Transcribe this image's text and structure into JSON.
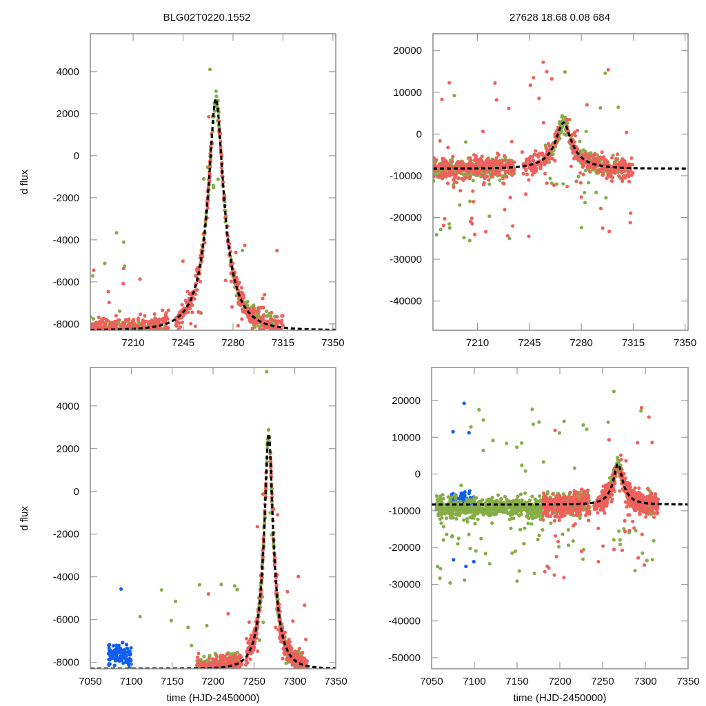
{
  "titles": {
    "left": "BLG02T0220.1552",
    "right": "27628  18.68  0.08  684"
  },
  "labels": {
    "ylabel": "d flux",
    "xlabel": "time (HJD-2450000)"
  },
  "colors": {
    "green": "#86ad47",
    "red": "#ef605c",
    "blue": "#0f5ef0",
    "model": "#000000",
    "frame": "#8a8a8a"
  },
  "chart_data": [
    {
      "id": "top-left",
      "type": "scatter",
      "title": "BLG02T0220.1552",
      "xlabel": "",
      "ylabel": "d flux",
      "xlim": [
        7180,
        7352
      ],
      "ylim": [
        -8300,
        5800
      ],
      "xticks": [
        7210,
        7245,
        7280,
        7315,
        7350
      ],
      "yticks": [
        -8000,
        -6000,
        -4000,
        -2000,
        0,
        2000,
        4000
      ],
      "model": {
        "t0": 7268,
        "peak": 2700,
        "baseline": -8300,
        "tE": 20,
        "style": "dashed"
      },
      "series": [
        {
          "name": "green",
          "color": "green",
          "segments": [
            [
              7180,
              7230
            ],
            [
              7255,
              7275
            ],
            [
              7278,
              7310
            ]
          ]
        },
        {
          "name": "red",
          "color": "red",
          "segments": [
            [
              7180,
              7235
            ],
            [
              7240,
              7265
            ],
            [
              7270,
              7315
            ]
          ]
        }
      ]
    },
    {
      "id": "top-right",
      "type": "scatter",
      "title": "27628  18.68  0.08  684",
      "xlabel": "",
      "ylabel": "",
      "xlim": [
        7180,
        7352
      ],
      "ylim": [
        -47000,
        24000
      ],
      "xticks": [
        7210,
        7245,
        7280,
        7315,
        7350
      ],
      "yticks": [
        -40000,
        -30000,
        -20000,
        -10000,
        0,
        10000,
        20000
      ],
      "model": {
        "t0": 7268,
        "peak": 2700,
        "baseline": -8300,
        "tE": 20,
        "style": "dashed"
      },
      "series": [
        {
          "name": "green",
          "color": "green",
          "segments": [
            [
              7180,
              7235
            ],
            [
              7255,
              7275
            ],
            [
              7278,
              7310
            ]
          ]
        },
        {
          "name": "red",
          "color": "red",
          "segments": [
            [
              7180,
              7235
            ],
            [
              7240,
              7265
            ],
            [
              7270,
              7315
            ]
          ]
        }
      ]
    },
    {
      "id": "bottom-left",
      "type": "scatter",
      "title": "",
      "xlabel": "time (HJD-2450000)",
      "ylabel": "d flux",
      "xlim": [
        7050,
        7350
      ],
      "ylim": [
        -8300,
        5800
      ],
      "xticks": [
        7050,
        7100,
        7150,
        7200,
        7250,
        7300,
        7350
      ],
      "yticks": [
        -8000,
        -6000,
        -4000,
        -2000,
        0,
        2000,
        4000
      ],
      "model": {
        "t0": 7268,
        "peak": 2700,
        "baseline": -8300,
        "tE": 20,
        "style": "dashed"
      },
      "series": [
        {
          "name": "blue",
          "color": "blue",
          "segments": [
            [
              7072,
              7100
            ]
          ]
        },
        {
          "name": "green",
          "color": "green",
          "segments": [
            [
              7100,
              7232
            ],
            [
              7255,
              7275
            ],
            [
              7278,
              7310
            ]
          ]
        },
        {
          "name": "red",
          "color": "red",
          "segments": [
            [
              7180,
              7235
            ],
            [
              7240,
              7265
            ],
            [
              7270,
              7315
            ]
          ]
        }
      ]
    },
    {
      "id": "bottom-right",
      "type": "scatter",
      "title": "",
      "xlabel": "time (HJD-2450000)",
      "ylabel": "",
      "xlim": [
        7050,
        7350
      ],
      "ylim": [
        -53000,
        29000
      ],
      "xticks": [
        7050,
        7100,
        7150,
        7200,
        7250,
        7300,
        7350
      ],
      "yticks": [
        -50000,
        -40000,
        -30000,
        -20000,
        -10000,
        0,
        10000,
        20000
      ],
      "model": {
        "t0": 7268,
        "peak": 2700,
        "baseline": -8300,
        "tE": 20,
        "style": "dashed"
      },
      "series": [
        {
          "name": "blue",
          "color": "blue",
          "segments": [
            [
              7072,
              7100
            ]
          ]
        },
        {
          "name": "green",
          "color": "green",
          "segments": [
            [
              7055,
              7235
            ],
            [
              7255,
              7275
            ],
            [
              7278,
              7310
            ]
          ]
        },
        {
          "name": "red",
          "color": "red",
          "segments": [
            [
              7180,
              7235
            ],
            [
              7240,
              7265
            ],
            [
              7270,
              7315
            ]
          ]
        }
      ]
    }
  ]
}
